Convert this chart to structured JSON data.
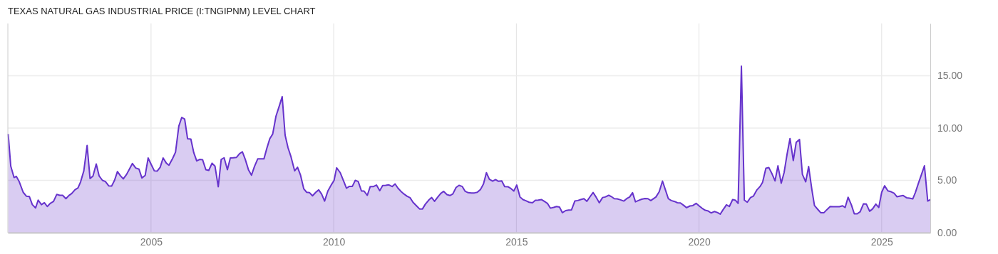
{
  "chart_data": {
    "type": "area",
    "title": "TEXAS NATURAL GAS INDUSTRIAL PRICE (I:TNGIPNM) LEVEL CHART",
    "x": [
      2001.09,
      2001.16,
      2001.25,
      2001.31,
      2001.39,
      2001.5,
      2001.59,
      2001.67,
      2001.75,
      2001.84,
      2001.91,
      2002.0,
      2002.08,
      2002.16,
      2002.24,
      2002.33,
      2002.42,
      2002.5,
      2002.58,
      2002.67,
      2002.75,
      2002.83,
      2002.92,
      2003.0,
      2003.07,
      2003.16,
      2003.25,
      2003.33,
      2003.41,
      2003.5,
      2003.58,
      2003.67,
      2003.75,
      2003.84,
      2003.92,
      2004.0,
      2004.08,
      2004.16,
      2004.24,
      2004.33,
      2004.41,
      2004.49,
      2004.58,
      2004.67,
      2004.75,
      2004.84,
      2004.92,
      2005.0,
      2005.09,
      2005.17,
      2005.25,
      2005.33,
      2005.42,
      2005.49,
      2005.59,
      2005.67,
      2005.76,
      2005.84,
      2005.92,
      2006.0,
      2006.09,
      2006.17,
      2006.25,
      2006.33,
      2006.41,
      2006.5,
      2006.58,
      2006.67,
      2006.75,
      2006.84,
      2006.92,
      2007.0,
      2007.09,
      2007.17,
      2007.25,
      2007.34,
      2007.42,
      2007.5,
      2007.58,
      2007.67,
      2007.75,
      2007.83,
      2007.92,
      2008.0,
      2008.09,
      2008.17,
      2008.25,
      2008.33,
      2008.42,
      2008.5,
      2008.59,
      2008.67,
      2008.75,
      2008.83,
      2008.93,
      2009.01,
      2009.09,
      2009.18,
      2009.26,
      2009.34,
      2009.42,
      2009.51,
      2009.59,
      2009.67,
      2009.75,
      2009.84,
      2009.93,
      2010.01,
      2010.08,
      2010.18,
      2010.35,
      2010.43,
      2010.51,
      2010.59,
      2010.67,
      2010.76,
      2010.83,
      2010.92,
      2011.0,
      2011.09,
      2011.17,
      2011.26,
      2011.34,
      2011.42,
      2011.51,
      2011.6,
      2011.68,
      2011.76,
      2011.84,
      2011.93,
      2012.01,
      2012.09,
      2012.17,
      2012.27,
      2012.35,
      2012.43,
      2012.51,
      2012.6,
      2012.68,
      2012.76,
      2012.85,
      2012.93,
      2013.01,
      2013.1,
      2013.18,
      2013.26,
      2013.35,
      2013.43,
      2013.52,
      2013.6,
      2013.68,
      2013.77,
      2013.85,
      2013.93,
      2014.02,
      2014.1,
      2014.18,
      2014.26,
      2014.35,
      2014.43,
      2014.51,
      2014.6,
      2014.68,
      2014.77,
      2014.84,
      2014.93,
      2015.01,
      2015.1,
      2015.18,
      2015.26,
      2015.35,
      2015.44,
      2015.52,
      2015.6,
      2015.69,
      2015.77,
      2015.85,
      2015.93,
      2016.02,
      2016.1,
      2016.18,
      2016.26,
      2016.35,
      2016.43,
      2016.51,
      2016.6,
      2016.68,
      2016.76,
      2016.85,
      2016.93,
      2017.02,
      2017.1,
      2017.18,
      2017.27,
      2017.36,
      2017.43,
      2017.53,
      2017.6,
      2017.68,
      2017.76,
      2017.85,
      2017.94,
      2018.02,
      2018.1,
      2018.18,
      2018.26,
      2018.35,
      2018.43,
      2018.52,
      2018.6,
      2018.68,
      2018.82,
      2018.91,
      2019.0,
      2019.08,
      2019.16,
      2019.24,
      2019.33,
      2019.41,
      2019.49,
      2019.58,
      2019.66,
      2019.75,
      2019.83,
      2019.92,
      2020.0,
      2020.08,
      2020.17,
      2020.25,
      2020.33,
      2020.42,
      2020.5,
      2020.58,
      2020.66,
      2020.75,
      2020.83,
      2020.92,
      2021.0,
      2021.07,
      2021.16,
      2021.24,
      2021.32,
      2021.41,
      2021.49,
      2021.58,
      2021.67,
      2021.74,
      2021.83,
      2021.91,
      2022.0,
      2022.08,
      2022.16,
      2022.25,
      2022.33,
      2022.41,
      2022.49,
      2022.58,
      2022.66,
      2022.75,
      2022.83,
      2022.92,
      2023.0,
      2023.09,
      2023.16,
      2023.25,
      2023.33,
      2023.42,
      2023.5,
      2023.59,
      2023.67,
      2023.76,
      2023.84,
      2023.93,
      2024.0,
      2024.08,
      2024.17,
      2024.25,
      2024.33,
      2024.41,
      2024.5,
      2024.58,
      2024.67,
      2024.75,
      2024.84,
      2024.92,
      2025.0,
      2025.08,
      2025.17,
      2025.26,
      2025.34,
      2025.42,
      2025.51,
      2025.59,
      2025.68,
      2025.76,
      2025.85,
      2025.92,
      2026.01,
      2026.09,
      2026.17,
      2026.26,
      2026.33
    ],
    "series": [
      {
        "color": "#6633cc",
        "values": [
          9.43,
          6.36,
          5.27,
          5.39,
          4.89,
          3.86,
          3.48,
          3.45,
          2.68,
          2.36,
          3.11,
          2.68,
          2.86,
          2.5,
          2.8,
          2.98,
          3.66,
          3.57,
          3.57,
          3.25,
          3.55,
          3.75,
          4.11,
          4.27,
          4.84,
          5.91,
          8.34,
          5.18,
          5.41,
          6.57,
          5.41,
          5.0,
          4.89,
          4.48,
          4.45,
          5.0,
          5.84,
          5.45,
          5.14,
          5.57,
          6.09,
          6.61,
          6.18,
          6.07,
          5.23,
          5.48,
          7.14,
          6.55,
          5.91,
          5.89,
          6.25,
          7.14,
          6.64,
          6.45,
          7.09,
          7.7,
          10.18,
          11.02,
          10.86,
          8.98,
          8.95,
          7.64,
          6.86,
          7.0,
          6.98,
          6.02,
          5.95,
          6.64,
          6.36,
          4.39,
          7.0,
          7.16,
          6.02,
          7.14,
          7.16,
          7.2,
          7.55,
          7.73,
          7.0,
          5.98,
          5.5,
          6.32,
          7.05,
          7.05,
          7.05,
          8.07,
          8.98,
          9.43,
          11.14,
          12.0,
          13.0,
          9.32,
          8.11,
          7.27,
          5.91,
          6.25,
          5.52,
          4.2,
          3.86,
          3.82,
          3.52,
          3.86,
          4.09,
          3.68,
          3.02,
          3.98,
          4.55,
          5.0,
          6.2,
          5.73,
          4.25,
          4.43,
          4.43,
          5.0,
          4.89,
          3.98,
          3.98,
          3.57,
          4.41,
          4.41,
          4.55,
          4.02,
          4.5,
          4.52,
          4.57,
          4.41,
          4.66,
          4.25,
          3.95,
          3.68,
          3.48,
          3.34,
          2.91,
          2.55,
          2.27,
          2.27,
          2.73,
          3.11,
          3.36,
          3.0,
          3.41,
          3.75,
          3.95,
          3.64,
          3.55,
          3.7,
          4.32,
          4.52,
          4.41,
          3.95,
          3.82,
          3.8,
          3.8,
          3.86,
          4.14,
          4.66,
          5.73,
          5.11,
          4.93,
          5.07,
          4.91,
          4.95,
          4.41,
          4.39,
          4.25,
          3.98,
          4.55,
          3.41,
          3.16,
          3.05,
          2.91,
          2.86,
          3.09,
          3.11,
          3.16,
          2.98,
          2.8,
          2.34,
          2.41,
          2.5,
          2.45,
          1.91,
          2.11,
          2.16,
          2.18,
          3.02,
          3.07,
          3.16,
          3.25,
          3.0,
          3.45,
          3.84,
          3.41,
          2.86,
          3.36,
          3.41,
          3.57,
          3.45,
          3.25,
          3.23,
          3.14,
          3.02,
          3.25,
          3.41,
          3.82,
          2.95,
          3.09,
          3.2,
          3.27,
          3.25,
          3.07,
          3.41,
          3.91,
          4.93,
          4.09,
          3.25,
          3.07,
          2.98,
          2.86,
          2.84,
          2.61,
          2.39,
          2.55,
          2.59,
          2.8,
          2.57,
          2.34,
          2.14,
          2.07,
          1.89,
          2.02,
          1.93,
          1.77,
          2.2,
          2.66,
          2.5,
          3.16,
          3.09,
          2.8,
          15.91,
          3.11,
          2.91,
          3.36,
          3.5,
          4.07,
          4.41,
          4.82,
          6.16,
          6.23,
          5.61,
          4.95,
          6.39,
          4.73,
          5.77,
          7.5,
          9.0,
          6.89,
          8.64,
          8.91,
          5.57,
          4.86,
          6.32,
          4.09,
          2.59,
          2.23,
          1.91,
          1.91,
          2.2,
          2.5,
          2.48,
          2.48,
          2.48,
          2.57,
          2.41,
          3.39,
          2.66,
          1.8,
          1.8,
          2.0,
          2.75,
          2.73,
          2.05,
          2.27,
          2.73,
          2.41,
          3.86,
          4.48,
          4.0,
          3.91,
          3.77,
          3.43,
          3.5,
          3.55,
          3.34,
          3.3,
          3.23,
          3.82,
          4.77,
          5.57,
          6.39,
          3.02,
          3.16
        ]
      }
    ],
    "xlim": [
      2001.08,
      2026.33
    ],
    "xticks": [
      2005,
      2010,
      2015,
      2020,
      2025
    ],
    "ylim": [
      0,
      20
    ],
    "yticks": [
      {
        "value": 0,
        "label": "0.00"
      },
      {
        "value": 5,
        "label": "5.00"
      },
      {
        "value": 10,
        "label": "10.00"
      },
      {
        "value": 15,
        "label": "15.00"
      }
    ],
    "grid": true
  }
}
